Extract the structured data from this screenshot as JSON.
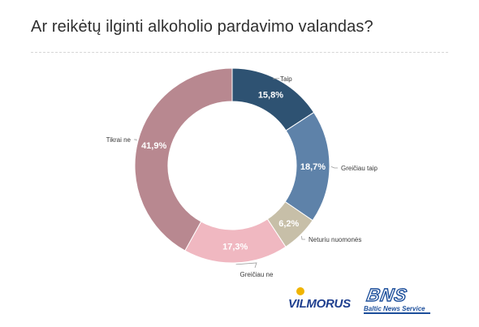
{
  "page": {
    "title": "Ar reikėtų ilginti alkoholio pardavimo valandas?"
  },
  "chart_data": {
    "type": "pie",
    "donut": true,
    "title": "Ar reikėtų ilginti alkoholio pardavimo valandas?",
    "slices": [
      {
        "label": "Taip",
        "value": 15.8,
        "display": "15,8%",
        "color": "#2e5272"
      },
      {
        "label": "Greičiau taip",
        "value": 18.7,
        "display": "18,7%",
        "color": "#5e82a9"
      },
      {
        "label": "Neturiu nuomonės",
        "value": 6.2,
        "display": "6,2%",
        "color": "#c7bfa8"
      },
      {
        "label": "Greičiau ne",
        "value": 17.3,
        "display": "17,3%",
        "color": "#f0b8c1"
      },
      {
        "label": "Tikrai ne",
        "value": 41.9,
        "display": "41,9%",
        "color": "#b88890"
      }
    ]
  },
  "logos": {
    "vilmorus": "VILMORUS",
    "bns": "BNS",
    "bns_sub": "Baltic News Service",
    "vilmorus_color": "#1f3f8f",
    "bns_color": "#1d4f9b"
  }
}
